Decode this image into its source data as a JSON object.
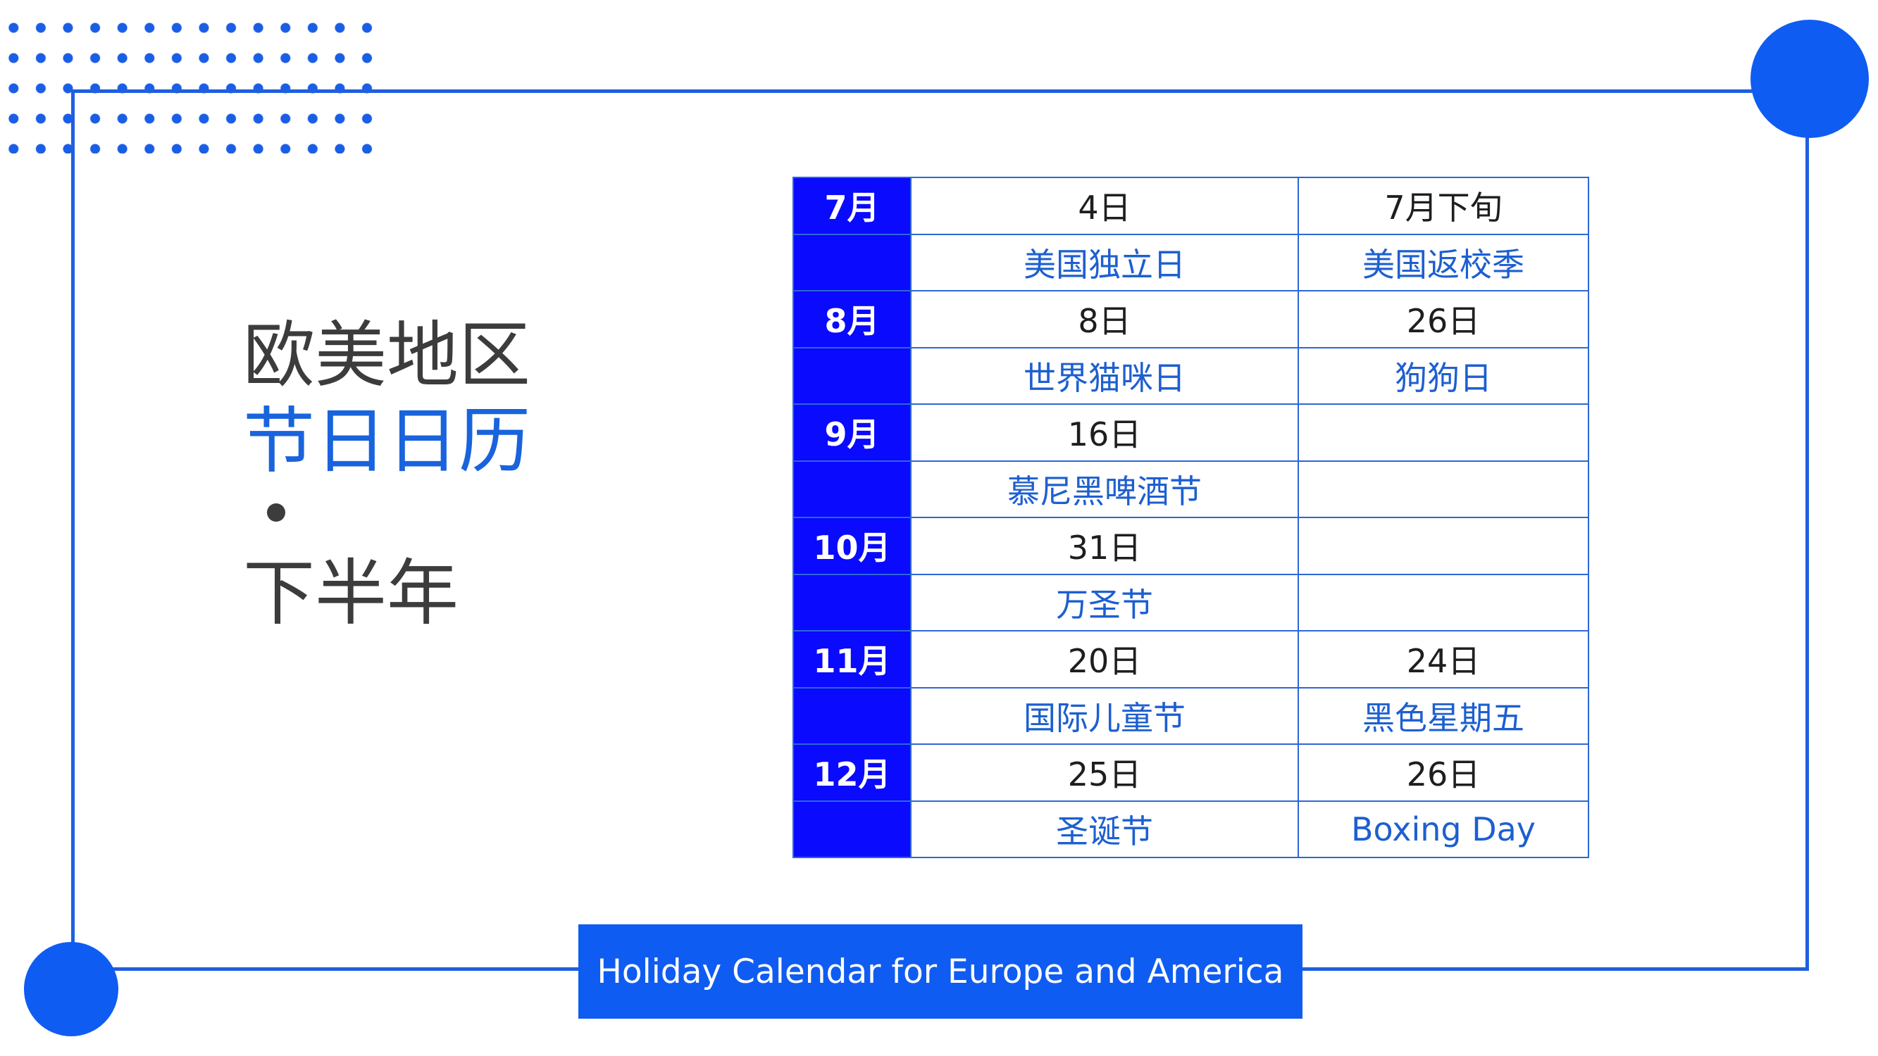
{
  "title": {
    "line1": "欧美地区",
    "line2": "节日日历",
    "line3": "下半年"
  },
  "calendar": {
    "months": [
      {
        "month": "7月",
        "dates": [
          "4日",
          "7月下旬"
        ],
        "names": [
          "美国独立日",
          "美国返校季"
        ]
      },
      {
        "month": "8月",
        "dates": [
          "8日",
          "26日"
        ],
        "names": [
          "世界猫咪日",
          "狗狗日"
        ]
      },
      {
        "month": "9月",
        "dates": [
          "16日",
          ""
        ],
        "names": [
          "慕尼黑啤酒节",
          ""
        ]
      },
      {
        "month": "10月",
        "dates": [
          "31日",
          ""
        ],
        "names": [
          "万圣节",
          ""
        ]
      },
      {
        "month": "11月",
        "dates": [
          "20日",
          "24日"
        ],
        "names": [
          "国际儿童节",
          "黑色星期五"
        ]
      },
      {
        "month": "12月",
        "dates": [
          "25日",
          "26日"
        ],
        "names": [
          "圣诞节",
          "Boxing Day"
        ]
      }
    ]
  },
  "banner": {
    "text": "Holiday Calendar for Europe and America"
  },
  "colors": {
    "accent": "#0f5cf2",
    "month_cell": "#0a0aff",
    "text_blue": "#1d5fd0"
  }
}
